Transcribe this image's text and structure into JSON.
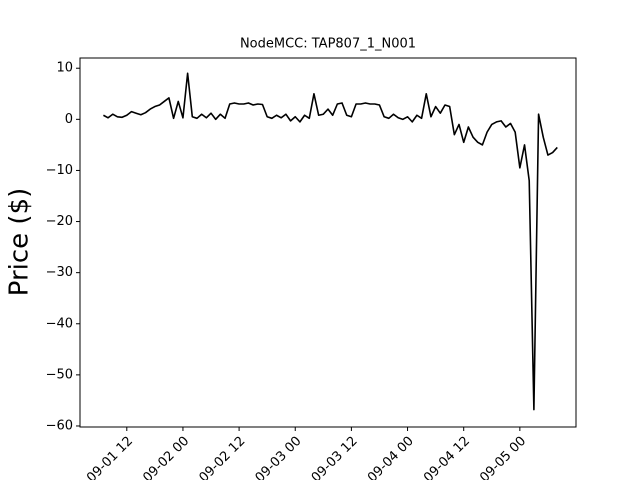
{
  "chart_data": {
    "type": "line",
    "title": "NodeMCC: TAP807_1_N001",
    "y_label": "Price ($)",
    "x": [
      "09-01 07",
      "09-01 08",
      "09-01 09",
      "09-01 10",
      "09-01 11",
      "09-01 12",
      "09-01 13",
      "09-01 14",
      "09-01 15",
      "09-01 16",
      "09-01 17",
      "09-01 18",
      "09-01 19",
      "09-01 20",
      "09-01 21",
      "09-01 22",
      "09-01 23",
      "09-02 00",
      "09-02 01",
      "09-02 02",
      "09-02 03",
      "09-02 04",
      "09-02 05",
      "09-02 06",
      "09-02 07",
      "09-02 08",
      "09-02 09",
      "09-02 10",
      "09-02 11",
      "09-02 12",
      "09-02 13",
      "09-02 14",
      "09-02 15",
      "09-02 16",
      "09-02 17",
      "09-02 18",
      "09-02 19",
      "09-02 20",
      "09-02 21",
      "09-02 22",
      "09-02 23",
      "09-03 00",
      "09-03 01",
      "09-03 02",
      "09-03 03",
      "09-03 04",
      "09-03 05",
      "09-03 06",
      "09-03 07",
      "09-03 08",
      "09-03 09",
      "09-03 10",
      "09-03 11",
      "09-03 12",
      "09-03 13",
      "09-03 14",
      "09-03 15",
      "09-03 16",
      "09-03 17",
      "09-03 18",
      "09-03 19",
      "09-03 20",
      "09-03 21",
      "09-03 22",
      "09-03 23",
      "09-04 00",
      "09-04 01",
      "09-04 02",
      "09-04 03",
      "09-04 04",
      "09-04 05",
      "09-04 06",
      "09-04 07",
      "09-04 08",
      "09-04 09",
      "09-04 10",
      "09-04 11",
      "09-04 12",
      "09-04 13",
      "09-04 14",
      "09-04 15",
      "09-04 16",
      "09-04 17",
      "09-04 18",
      "09-04 19",
      "09-04 20",
      "09-04 21",
      "09-04 22",
      "09-04 23",
      "09-05 00",
      "09-05 01",
      "09-05 02",
      "09-05 03",
      "09-05 04",
      "09-05 05",
      "09-05 06",
      "09-05 07",
      "09-05 08"
    ],
    "series": [
      {
        "color": "#000000",
        "values": [
          0.8,
          0.3,
          1.0,
          0.5,
          0.4,
          0.8,
          1.5,
          1.2,
          0.9,
          1.3,
          2.0,
          2.5,
          2.8,
          3.5,
          4.2,
          0.2,
          3.5,
          0.3,
          9.0,
          0.5,
          0.2,
          1.0,
          0.3,
          1.2,
          0.0,
          1.0,
          0.2,
          3.0,
          3.2,
          3.0,
          3.0,
          3.2,
          2.8,
          3.0,
          2.9,
          0.5,
          0.2,
          0.8,
          0.3,
          1.0,
          -0.3,
          0.5,
          -0.5,
          0.8,
          0.2,
          5.0,
          0.8,
          1.0,
          2.0,
          0.8,
          3.0,
          3.2,
          0.8,
          0.5,
          3.0,
          3.0,
          3.2,
          3.0,
          3.0,
          2.8,
          0.5,
          0.2,
          1.0,
          0.3,
          0.0,
          0.5,
          -0.5,
          0.8,
          0.2,
          5.0,
          0.5,
          2.5,
          1.2,
          2.8,
          2.5,
          -3.0,
          -1.0,
          -4.5,
          -1.5,
          -3.5,
          -4.5,
          -5.0,
          -2.5,
          -1.0,
          -0.5,
          -0.3,
          -1.5,
          -0.8,
          -2.5,
          -9.5,
          -5.0,
          -12.0,
          -56.8,
          1.0,
          -3.5,
          -7.0,
          -6.5,
          -5.5
        ]
      }
    ],
    "xlim": [
      "09-01 02",
      "09-05 12"
    ],
    "xticks": [
      "09-01 12",
      "09-02 00",
      "09-02 12",
      "09-03 00",
      "09-03 12",
      "09-04 00",
      "09-04 12",
      "09-05 00"
    ],
    "ylim": [
      -60.2,
      12.0
    ],
    "yticks": [
      {
        "value": -60,
        "label": "−60"
      },
      {
        "value": -50,
        "label": "−50"
      },
      {
        "value": -40,
        "label": "−40"
      },
      {
        "value": -30,
        "label": "−30"
      },
      {
        "value": -20,
        "label": "−20"
      },
      {
        "value": -10,
        "label": "−10"
      },
      0,
      10
    ]
  }
}
